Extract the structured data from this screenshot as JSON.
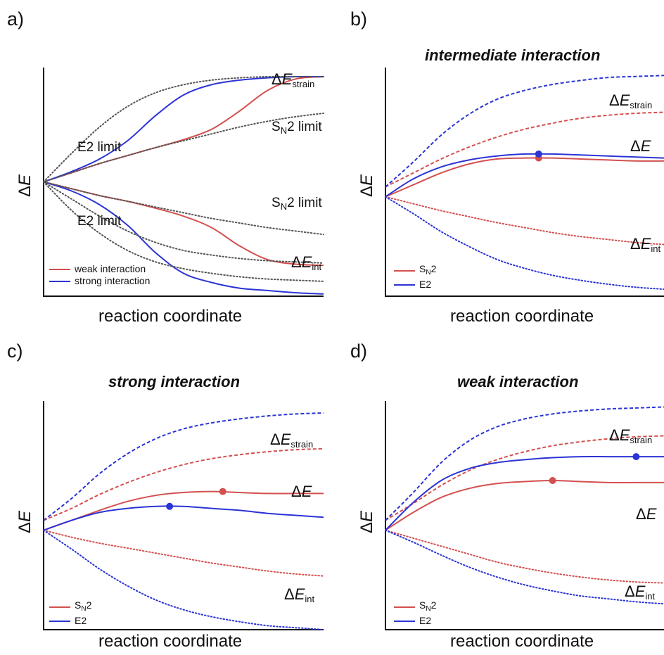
{
  "figure": {
    "panels": [
      {
        "label": "a)",
        "title": "",
        "xlabel": "reaction coordinate",
        "ylabel": "ΔE",
        "legend": [
          {
            "label": "weak interaction",
            "color": "#d3504f"
          },
          {
            "label": "strong interaction",
            "color": "#2b34d4"
          }
        ],
        "annotations": {
          "strain": "ΔEstrain",
          "sn2_limit_upper": "SN2 limit",
          "e2_limit_upper": "E2 limit",
          "sn2_limit_lower": "SN2 limit",
          "e2_limit_lower": "E2 limit",
          "int": "ΔEint"
        }
      },
      {
        "label": "b)",
        "title": "intermediate interaction",
        "xlabel": "reaction coordinate",
        "ylabel": "ΔE",
        "legend": [
          {
            "label": "SN2",
            "color": "#d3504f"
          },
          {
            "label": "E2",
            "color": "#2b34d4"
          }
        ],
        "annotations": {
          "strain": "ΔEstrain",
          "total": "ΔE",
          "int": "ΔEint"
        }
      },
      {
        "label": "c)",
        "title": "strong interaction",
        "xlabel": "reaction coordinate",
        "ylabel": "ΔE",
        "legend": [
          {
            "label": "SN2",
            "color": "#d3504f"
          },
          {
            "label": "E2",
            "color": "#2b34d4"
          }
        ],
        "annotations": {
          "strain": "ΔEstrain",
          "total": "ΔE",
          "int": "ΔEint"
        }
      },
      {
        "label": "d)",
        "title": "weak interaction",
        "xlabel": "reaction coordinate",
        "ylabel": "ΔE",
        "legend": [
          {
            "label": "SN2",
            "color": "#d3504f"
          },
          {
            "label": "E2",
            "color": "#2b34d4"
          }
        ],
        "annotations": {
          "strain": "ΔEstrain",
          "total": "ΔE",
          "int": "ΔEint"
        }
      }
    ]
  },
  "colors": {
    "sn2": "#d3504f",
    "e2": "#2b34d4",
    "limit": "#555555",
    "axis": "#111111"
  },
  "chart_data": [
    {
      "panel": "a)",
      "type": "line",
      "title": "",
      "xlabel": "reaction coordinate",
      "ylabel": "ΔE",
      "x": [
        0,
        0.1,
        0.2,
        0.3,
        0.4,
        0.5,
        0.6,
        0.7,
        0.8,
        0.9,
        1.0
      ],
      "xlim": [
        0,
        1
      ],
      "ylim": [
        -1.0,
        1.0
      ],
      "grid": false,
      "legend_position": "bottom-left",
      "series": [
        {
          "name": "weak interaction",
          "component": "ΔEstrain",
          "style": "solid",
          "color": "#d3504f",
          "values": [
            0,
            0.08,
            0.16,
            0.23,
            0.3,
            0.37,
            0.46,
            0.62,
            0.8,
            0.9,
            0.92
          ]
        },
        {
          "name": "strong interaction",
          "component": "ΔEstrain",
          "style": "solid",
          "color": "#2b34d4",
          "values": [
            0,
            0.09,
            0.2,
            0.36,
            0.58,
            0.76,
            0.85,
            0.89,
            0.91,
            0.92,
            0.92
          ]
        },
        {
          "name": "weak interaction",
          "component": "ΔEint",
          "style": "solid",
          "color": "#d3504f",
          "values": [
            0,
            -0.06,
            -0.12,
            -0.17,
            -0.23,
            -0.3,
            -0.4,
            -0.56,
            -0.68,
            -0.72,
            -0.73
          ]
        },
        {
          "name": "strong interaction",
          "component": "ΔEint",
          "style": "solid",
          "color": "#2b34d4",
          "values": [
            0,
            -0.08,
            -0.2,
            -0.38,
            -0.62,
            -0.8,
            -0.88,
            -0.93,
            -0.95,
            -0.97,
            -0.98
          ]
        },
        {
          "name": "SN2 limit",
          "component": "ΔEstrain",
          "style": "dotted",
          "color": "#555555",
          "values": [
            0,
            0.08,
            0.16,
            0.23,
            0.3,
            0.36,
            0.42,
            0.48,
            0.53,
            0.57,
            0.6
          ]
        },
        {
          "name": "E2 limit",
          "component": "ΔEstrain",
          "style": "dotted",
          "color": "#555555",
          "values": [
            0,
            0.25,
            0.48,
            0.66,
            0.78,
            0.85,
            0.89,
            0.91,
            0.92,
            0.92,
            0.92
          ]
        },
        {
          "name": "SN2 limit",
          "component": "ΔEint",
          "style": "dotted",
          "color": "#555555",
          "values": [
            0,
            -0.06,
            -0.12,
            -0.17,
            -0.22,
            -0.27,
            -0.32,
            -0.36,
            -0.4,
            -0.43,
            -0.46
          ]
        },
        {
          "name": "E2 limit",
          "component": "ΔEint",
          "style": "dotted",
          "color": "#555555",
          "values": [
            0,
            -0.25,
            -0.45,
            -0.6,
            -0.7,
            -0.76,
            -0.8,
            -0.83,
            -0.85,
            -0.86,
            -0.87
          ]
        },
        {
          "name": "E2 limit",
          "component": "ΔEint",
          "style": "dotted",
          "color": "#555555",
          "values": [
            0,
            -0.15,
            -0.3,
            -0.43,
            -0.53,
            -0.6,
            -0.64,
            -0.67,
            -0.69,
            -0.7,
            -0.71
          ]
        }
      ]
    },
    {
      "panel": "b)",
      "type": "line",
      "title": "intermediate interaction",
      "xlabel": "reaction coordinate",
      "ylabel": "ΔE",
      "x": [
        0,
        0.1,
        0.2,
        0.3,
        0.4,
        0.5,
        0.6,
        0.7,
        0.8,
        0.9,
        1.0
      ],
      "xlim": [
        0,
        1
      ],
      "ylim": [
        -1.0,
        1.3
      ],
      "grid": false,
      "legend_position": "bottom-left",
      "series": [
        {
          "name": "SN2",
          "component": "ΔEstrain",
          "style": "dashed",
          "color": "#d3504f",
          "values": [
            0.1,
            0.24,
            0.38,
            0.5,
            0.6,
            0.68,
            0.74,
            0.79,
            0.82,
            0.84,
            0.85
          ]
        },
        {
          "name": "E2",
          "component": "ΔEstrain",
          "style": "dashed",
          "color": "#2b34d4",
          "values": [
            0.1,
            0.35,
            0.62,
            0.83,
            0.98,
            1.07,
            1.13,
            1.17,
            1.2,
            1.21,
            1.22
          ]
        },
        {
          "name": "SN2",
          "component": "ΔE",
          "style": "solid",
          "color": "#d3504f",
          "values": [
            0,
            0.12,
            0.24,
            0.33,
            0.38,
            0.39,
            0.39,
            0.38,
            0.37,
            0.36,
            0.36
          ]
        },
        {
          "name": "E2",
          "component": "ΔE",
          "style": "solid",
          "color": "#2b34d4",
          "values": [
            0,
            0.18,
            0.3,
            0.37,
            0.41,
            0.43,
            0.43,
            0.42,
            0.41,
            0.4,
            0.39
          ]
        },
        {
          "name": "SN2",
          "component": "ΔEint",
          "style": "dotted",
          "color": "#d3504f",
          "values": [
            0,
            -0.07,
            -0.14,
            -0.2,
            -0.26,
            -0.31,
            -0.36,
            -0.4,
            -0.43,
            -0.46,
            -0.48
          ]
        },
        {
          "name": "E2",
          "component": "ΔEint",
          "style": "dotted",
          "color": "#2b34d4",
          "values": [
            0,
            -0.17,
            -0.35,
            -0.5,
            -0.63,
            -0.72,
            -0.79,
            -0.84,
            -0.88,
            -0.91,
            -0.93
          ]
        }
      ],
      "markers": [
        {
          "series": "SN2",
          "x": 0.55,
          "y": 0.39
        },
        {
          "series": "E2",
          "x": 0.55,
          "y": 0.43
        }
      ]
    },
    {
      "panel": "c)",
      "type": "line",
      "title": "strong interaction",
      "xlabel": "reaction coordinate",
      "ylabel": "ΔE",
      "x": [
        0,
        0.1,
        0.2,
        0.3,
        0.4,
        0.5,
        0.6,
        0.7,
        0.8,
        0.9,
        1.0
      ],
      "xlim": [
        0,
        1
      ],
      "ylim": [
        -1.0,
        1.3
      ],
      "grid": false,
      "legend_position": "bottom-left",
      "series": [
        {
          "name": "SN2",
          "component": "ΔEstrain",
          "style": "dashed",
          "color": "#d3504f",
          "values": [
            0.1,
            0.22,
            0.36,
            0.48,
            0.58,
            0.66,
            0.72,
            0.76,
            0.79,
            0.81,
            0.82
          ]
        },
        {
          "name": "E2",
          "component": "ΔEstrain",
          "style": "dashed",
          "color": "#2b34d4",
          "values": [
            0.1,
            0.32,
            0.57,
            0.77,
            0.92,
            1.02,
            1.08,
            1.12,
            1.15,
            1.17,
            1.18
          ]
        },
        {
          "name": "SN2",
          "component": "ΔE",
          "style": "solid",
          "color": "#d3504f",
          "values": [
            0,
            0.1,
            0.2,
            0.29,
            0.35,
            0.38,
            0.39,
            0.38,
            0.37,
            0.37,
            0.37
          ]
        },
        {
          "name": "E2",
          "component": "ΔE",
          "style": "solid",
          "color": "#2b34d4",
          "values": [
            0,
            0.1,
            0.18,
            0.22,
            0.24,
            0.24,
            0.22,
            0.2,
            0.17,
            0.15,
            0.13
          ]
        },
        {
          "name": "SN2",
          "component": "ΔEint",
          "style": "dotted",
          "color": "#d3504f",
          "values": [
            0,
            -0.07,
            -0.13,
            -0.18,
            -0.23,
            -0.28,
            -0.33,
            -0.37,
            -0.41,
            -0.44,
            -0.46
          ]
        },
        {
          "name": "E2",
          "component": "ΔEint",
          "style": "dotted",
          "color": "#2b34d4",
          "values": [
            0,
            -0.19,
            -0.39,
            -0.56,
            -0.7,
            -0.8,
            -0.87,
            -0.92,
            -0.96,
            -0.98,
            -1.0
          ]
        }
      ],
      "markers": [
        {
          "series": "SN2",
          "x": 0.64,
          "y": 0.39
        },
        {
          "series": "E2",
          "x": 0.45,
          "y": 0.24
        }
      ]
    },
    {
      "panel": "d)",
      "type": "line",
      "title": "weak interaction",
      "xlabel": "reaction coordinate",
      "ylabel": "ΔE",
      "x": [
        0,
        0.1,
        0.2,
        0.3,
        0.4,
        0.5,
        0.6,
        0.7,
        0.8,
        0.9,
        1.0
      ],
      "xlim": [
        0,
        1
      ],
      "ylim": [
        -1.0,
        1.3
      ],
      "grid": false,
      "legend_position": "bottom-left",
      "series": [
        {
          "name": "SN2",
          "component": "ΔEstrain",
          "style": "dashed",
          "color": "#d3504f",
          "values": [
            0.1,
            0.27,
            0.45,
            0.6,
            0.71,
            0.79,
            0.85,
            0.89,
            0.92,
            0.94,
            0.95
          ]
        },
        {
          "name": "E2",
          "component": "ΔEstrain",
          "style": "dashed",
          "color": "#2b34d4",
          "values": [
            0.1,
            0.38,
            0.68,
            0.9,
            1.04,
            1.12,
            1.17,
            1.2,
            1.22,
            1.23,
            1.24
          ]
        },
        {
          "name": "SN2",
          "component": "ΔE",
          "style": "solid",
          "color": "#d3504f",
          "values": [
            0,
            0.18,
            0.33,
            0.42,
            0.47,
            0.49,
            0.5,
            0.49,
            0.48,
            0.48,
            0.48
          ]
        },
        {
          "name": "E2",
          "component": "ΔE",
          "style": "solid",
          "color": "#2b34d4",
          "values": [
            0,
            0.28,
            0.5,
            0.62,
            0.68,
            0.71,
            0.73,
            0.74,
            0.74,
            0.74,
            0.74
          ]
        },
        {
          "name": "SN2",
          "component": "ΔEint",
          "style": "dotted",
          "color": "#d3504f",
          "values": [
            0,
            -0.08,
            -0.16,
            -0.24,
            -0.32,
            -0.38,
            -0.43,
            -0.47,
            -0.5,
            -0.52,
            -0.53
          ]
        },
        {
          "name": "E2",
          "component": "ΔEint",
          "style": "dotted",
          "color": "#2b34d4",
          "values": [
            0,
            -0.12,
            -0.25,
            -0.37,
            -0.47,
            -0.55,
            -0.61,
            -0.66,
            -0.69,
            -0.72,
            -0.74
          ]
        }
      ],
      "markers": [
        {
          "series": "SN2",
          "x": 0.6,
          "y": 0.5
        },
        {
          "series": "E2",
          "x": 0.9,
          "y": 0.74
        }
      ]
    }
  ]
}
